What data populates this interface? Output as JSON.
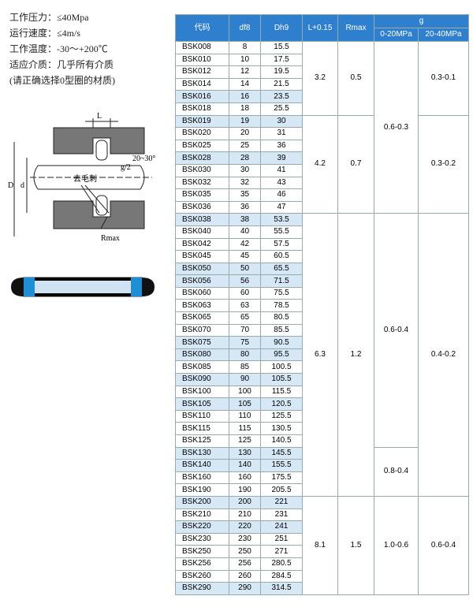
{
  "specs": [
    "工作压力：≤40Mpa",
    "运行速度：≤4m/s",
    "工作温度：-30～+200℃",
    "适应介质：几乎所有介质",
    "(请正确选择0型圈的材质)"
  ],
  "diagram": {
    "l": "L",
    "angle": "20~30°",
    "g_half": "g/2",
    "outer": "D",
    "inner": "d",
    "deburr": "去毛刺",
    "rmax": "Rmax"
  },
  "table": {
    "header": {
      "code": "代码",
      "df8": "df8",
      "dh9": "Dh9",
      "l": "L+0.15",
      "rmax": "Rmax",
      "g": "g",
      "g_low": "0-20MPa",
      "g_high": "20-40MPa"
    },
    "rows": [
      [
        "BSK008",
        "8",
        "15.5",
        false
      ],
      [
        "BSK010",
        "10",
        "17.5",
        false
      ],
      [
        "BSK012",
        "12",
        "19.5",
        false
      ],
      [
        "BSK014",
        "14",
        "21.5",
        false
      ],
      [
        "BSK016",
        "16",
        "23.5",
        true
      ],
      [
        "BSK018",
        "18",
        "25.5",
        false
      ],
      [
        "BSK019",
        "19",
        "30",
        true
      ],
      [
        "BSK020",
        "20",
        "31",
        false
      ],
      [
        "BSK025",
        "25",
        "36",
        false
      ],
      [
        "BSK028",
        "28",
        "39",
        true
      ],
      [
        "BSK030",
        "30",
        "41",
        false
      ],
      [
        "BSK032",
        "32",
        "43",
        false
      ],
      [
        "BSK035",
        "35",
        "46",
        false
      ],
      [
        "BSK036",
        "36",
        "47",
        false
      ],
      [
        "BSK038",
        "38",
        "53.5",
        true
      ],
      [
        "BSK040",
        "40",
        "55.5",
        false
      ],
      [
        "BSK042",
        "42",
        "57.5",
        false
      ],
      [
        "BSK045",
        "45",
        "60.5",
        false
      ],
      [
        "BSK050",
        "50",
        "65.5",
        true
      ],
      [
        "BSK056",
        "56",
        "71.5",
        true
      ],
      [
        "BSK060",
        "60",
        "75.5",
        false
      ],
      [
        "BSK063",
        "63",
        "78.5",
        false
      ],
      [
        "BSK065",
        "65",
        "80.5",
        false
      ],
      [
        "BSK070",
        "70",
        "85.5",
        false
      ],
      [
        "BSK075",
        "75",
        "90.5",
        true
      ],
      [
        "BSK080",
        "80",
        "95.5",
        true
      ],
      [
        "BSK085",
        "85",
        "100.5",
        false
      ],
      [
        "BSK090",
        "90",
        "105.5",
        true
      ],
      [
        "BSK100",
        "100",
        "115.5",
        false
      ],
      [
        "BSK105",
        "105",
        "120.5",
        true
      ],
      [
        "BSK110",
        "110",
        "125.5",
        false
      ],
      [
        "BSK115",
        "115",
        "130.5",
        false
      ],
      [
        "BSK125",
        "125",
        "140.5",
        false
      ],
      [
        "BSK130",
        "130",
        "145.5",
        true
      ],
      [
        "BSK140",
        "140",
        "155.5",
        true
      ],
      [
        "BSK160",
        "160",
        "175.5",
        false
      ],
      [
        "BSK190",
        "190",
        "205.5",
        false
      ],
      [
        "BSK200",
        "200",
        "221",
        true
      ],
      [
        "BSK210",
        "210",
        "231",
        false
      ],
      [
        "BSK220",
        "220",
        "241",
        true
      ],
      [
        "BSK230",
        "230",
        "251",
        false
      ],
      [
        "BSK250",
        "250",
        "271",
        false
      ],
      [
        "BSK256",
        "256",
        "280.5",
        false
      ],
      [
        "BSK260",
        "260",
        "284.5",
        false
      ],
      [
        "BSK290",
        "290",
        "314.5",
        true
      ]
    ],
    "l_rmax": [
      {
        "l": "3.2",
        "rmax": "0.5",
        "span": 6
      },
      {
        "l": "4.2",
        "rmax": "0.7",
        "span": 8
      },
      {
        "l": "6.3",
        "rmax": "1.2",
        "span": 23
      },
      {
        "l": "8.1",
        "rmax": "1.5",
        "span": 8
      }
    ],
    "g_low": [
      {
        "value": "0.6-0.3",
        "span": 14
      },
      {
        "value": "0.6-0.4",
        "span": 19
      },
      {
        "value": "0.8-0.4",
        "span": 4
      },
      {
        "value": "1.0-0.6",
        "span": 8
      }
    ],
    "g_high": [
      {
        "value": "0.3-0.1",
        "span": 6
      },
      {
        "value": "0.3-0.2",
        "span": 8
      },
      {
        "value": "0.4-0.2",
        "span": 23
      },
      {
        "value": "0.6-0.4",
        "span": 8
      }
    ]
  }
}
